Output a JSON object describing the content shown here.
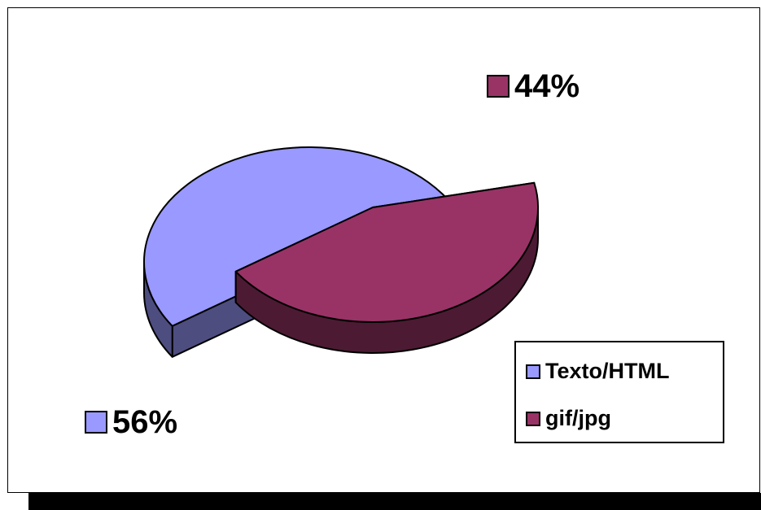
{
  "chart_data": {
    "type": "pie",
    "title": "",
    "categories": [
      "Texto/HTML",
      "gif/jpg"
    ],
    "values": [
      56,
      44
    ],
    "value_labels": [
      "56%",
      "44%"
    ],
    "colors": [
      "#9999ff",
      "#993366"
    ],
    "side_colors": [
      "#4d4d80",
      "#4d1a33"
    ],
    "three_d": true,
    "exploded": true,
    "legend_position": "bottom-right"
  }
}
